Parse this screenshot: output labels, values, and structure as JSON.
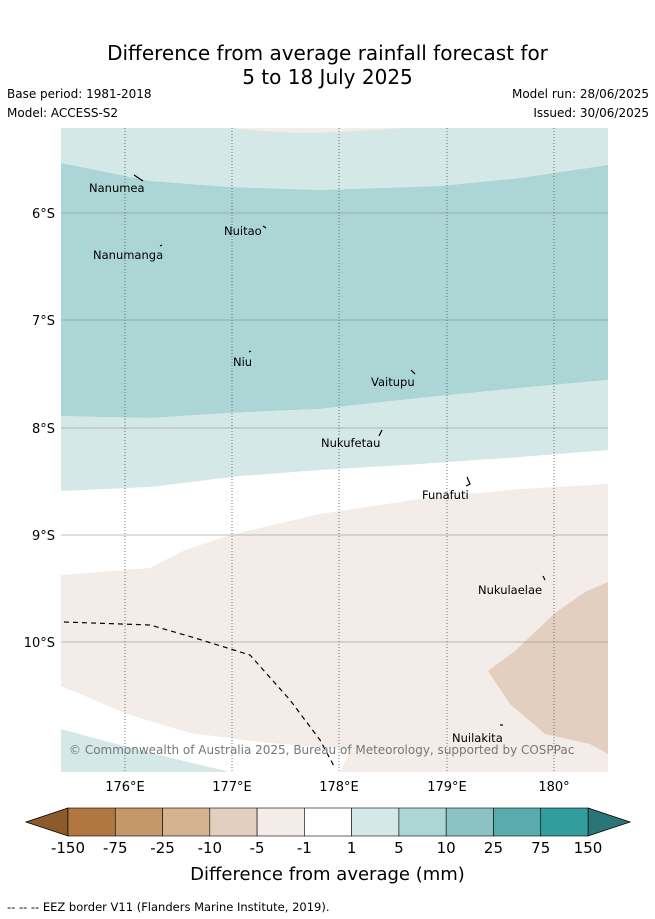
{
  "header": {
    "title_line1": "Difference from average rainfall forecast for",
    "title_line2": "5 to 18 July 2025",
    "base_period": "Base period: 1981-2018",
    "model": "Model: ACCESS-S2",
    "model_run": "Model run: 28/06/2025",
    "issued": "Issued: 30/06/2025"
  },
  "map": {
    "lat_labels": [
      "6°S",
      "7°S",
      "8°S",
      "9°S",
      "10°S"
    ],
    "lon_labels": [
      "176°E",
      "177°E",
      "178°E",
      "179°E",
      "180°"
    ],
    "islands": [
      "Nanumea",
      "Nuitao",
      "Nanumanga",
      "Niu",
      "Vaitupu",
      "Nukufetau",
      "Funafuti",
      "Nukulaelae",
      "Nuilakita"
    ],
    "copyright": "© Commonwealth of Australia 2025, Bureau of Meteorology, supported by COSPPac"
  },
  "colorbar": {
    "ticks": [
      "-150",
      "-75",
      "-25",
      "-10",
      "-5",
      "-1",
      "1",
      "5",
      "10",
      "25",
      "75",
      "150"
    ],
    "colors": [
      "#8c5a2b",
      "#b07840",
      "#c49868",
      "#d4b392",
      "#e3cfbf",
      "#f4ece8",
      "#ffffff",
      "#d4e8e8",
      "#acd6d6",
      "#8cc2c2",
      "#5aacac",
      "#339c9c",
      "#2a7676"
    ],
    "label": "Difference from average (mm)"
  },
  "footer": {
    "legend_note": "-- -- -- EEZ border V11 (Flanders Marine Institute, 2019)."
  }
}
